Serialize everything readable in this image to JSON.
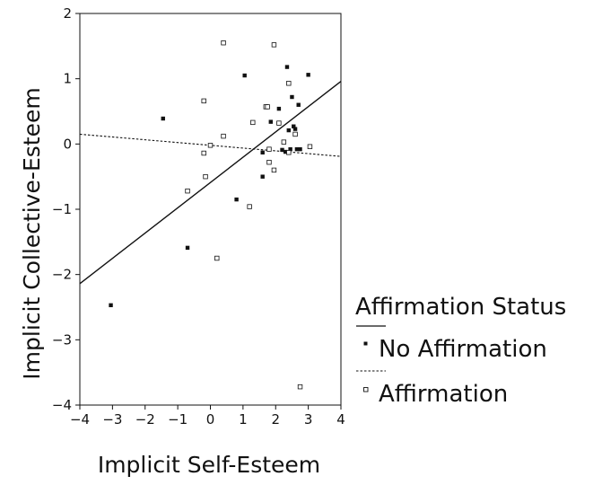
{
  "chart_data": {
    "type": "scatter",
    "xlabel": "Implicit Self-Esteem",
    "ylabel": "Implicit Collective-Esteem",
    "xlim": [
      -4,
      4
    ],
    "ylim": [
      -4,
      2
    ],
    "xticks": [
      -4,
      -3,
      -2,
      -1,
      0,
      1,
      2,
      3,
      4
    ],
    "yticks": [
      -4,
      -3,
      -2,
      -1,
      0,
      1,
      2
    ],
    "grid": false,
    "legend": {
      "title": "Affirmation Status",
      "placement": "right"
    },
    "series": [
      {
        "name": "No Affirmation",
        "marker": "filled-square",
        "line_style": "solid",
        "color": "#111111",
        "fit_line": [
          [
            -4,
            -2.14
          ],
          [
            4,
            0.96
          ]
        ],
        "points": [
          [
            -3.05,
            -2.47
          ],
          [
            -1.45,
            0.39
          ],
          [
            -0.7,
            -1.59
          ],
          [
            0.8,
            -0.85
          ],
          [
            1.05,
            1.05
          ],
          [
            1.6,
            -0.13
          ],
          [
            1.6,
            -0.5
          ],
          [
            1.85,
            0.34
          ],
          [
            2.1,
            0.54
          ],
          [
            2.2,
            -0.09
          ],
          [
            2.3,
            -0.12
          ],
          [
            2.35,
            1.18
          ],
          [
            2.4,
            0.21
          ],
          [
            2.45,
            -0.08
          ],
          [
            2.5,
            0.72
          ],
          [
            2.55,
            0.27
          ],
          [
            2.6,
            0.23
          ],
          [
            2.65,
            -0.08
          ],
          [
            2.7,
            0.6
          ],
          [
            2.75,
            -0.08
          ],
          [
            3.0,
            1.06
          ]
        ]
      },
      {
        "name": "Affirmation",
        "marker": "open-square",
        "line_style": "dashed",
        "color": "#111111",
        "fit_line": [
          [
            -4,
            0.15
          ],
          [
            4,
            -0.19
          ]
        ],
        "points": [
          [
            -0.7,
            -0.72
          ],
          [
            -0.2,
            0.66
          ],
          [
            -0.15,
            -0.5
          ],
          [
            -0.2,
            -0.14
          ],
          [
            0.0,
            -0.02
          ],
          [
            0.2,
            -1.75
          ],
          [
            0.4,
            1.55
          ],
          [
            0.4,
            0.12
          ],
          [
            1.2,
            -0.96
          ],
          [
            1.3,
            0.33
          ],
          [
            1.7,
            0.57
          ],
          [
            1.75,
            0.57
          ],
          [
            1.8,
            -0.08
          ],
          [
            1.8,
            -0.28
          ],
          [
            1.95,
            1.52
          ],
          [
            1.95,
            -0.4
          ],
          [
            2.1,
            0.32
          ],
          [
            2.25,
            0.03
          ],
          [
            2.4,
            0.93
          ],
          [
            2.4,
            -0.13
          ],
          [
            2.6,
            0.15
          ],
          [
            2.75,
            -3.72
          ],
          [
            3.05,
            -0.04
          ]
        ]
      }
    ]
  }
}
